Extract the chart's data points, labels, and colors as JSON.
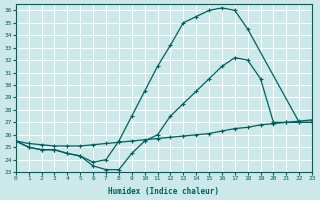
{
  "xlabel": "Humidex (Indice chaleur)",
  "bg_color": "#cce8e8",
  "grid_color": "#ffffff",
  "line_color": "#006060",
  "xlim": [
    0,
    23
  ],
  "ylim": [
    23,
    36.5
  ],
  "yticks": [
    23,
    24,
    25,
    26,
    27,
    28,
    29,
    30,
    31,
    32,
    33,
    34,
    35,
    36
  ],
  "xticks": [
    0,
    1,
    2,
    3,
    4,
    5,
    6,
    7,
    8,
    9,
    10,
    11,
    12,
    13,
    14,
    15,
    16,
    17,
    18,
    19,
    20,
    21,
    22,
    23
  ],
  "line1_x": [
    0,
    1,
    2,
    3,
    4,
    5,
    6,
    7,
    8,
    9,
    10,
    11,
    12,
    13,
    14,
    15,
    16,
    17,
    18,
    19,
    20,
    21,
    22,
    23
  ],
  "line1_y": [
    25.5,
    25.0,
    24.8,
    24.8,
    24.5,
    24.3,
    23.5,
    23.2,
    23.2,
    24.5,
    25.5,
    26.0,
    27.5,
    28.5,
    29.5,
    30.5,
    31.5,
    32.2,
    32.0,
    30.5,
    27.0,
    27.0,
    27.0,
    27.0
  ],
  "line2_x": [
    0,
    1,
    2,
    3,
    4,
    5,
    6,
    7,
    8,
    9,
    10,
    11,
    12,
    13,
    14,
    15,
    16,
    17,
    18,
    22,
    23
  ],
  "line2_y": [
    25.5,
    25.0,
    24.8,
    24.8,
    24.5,
    24.3,
    23.8,
    24.0,
    25.5,
    27.5,
    29.5,
    31.5,
    33.2,
    35.0,
    35.5,
    36.0,
    36.2,
    36.0,
    34.5,
    27.0,
    27.0
  ],
  "line3_x": [
    0,
    1,
    2,
    3,
    4,
    5,
    6,
    7,
    8,
    9,
    10,
    11,
    12,
    13,
    14,
    15,
    16,
    17,
    18,
    19,
    20,
    21,
    22,
    23
  ],
  "line3_y": [
    25.5,
    25.3,
    25.2,
    25.1,
    25.1,
    25.1,
    25.2,
    25.3,
    25.4,
    25.5,
    25.6,
    25.7,
    25.8,
    25.9,
    26.0,
    26.1,
    26.3,
    26.5,
    26.6,
    26.8,
    26.9,
    27.0,
    27.1,
    27.2
  ]
}
